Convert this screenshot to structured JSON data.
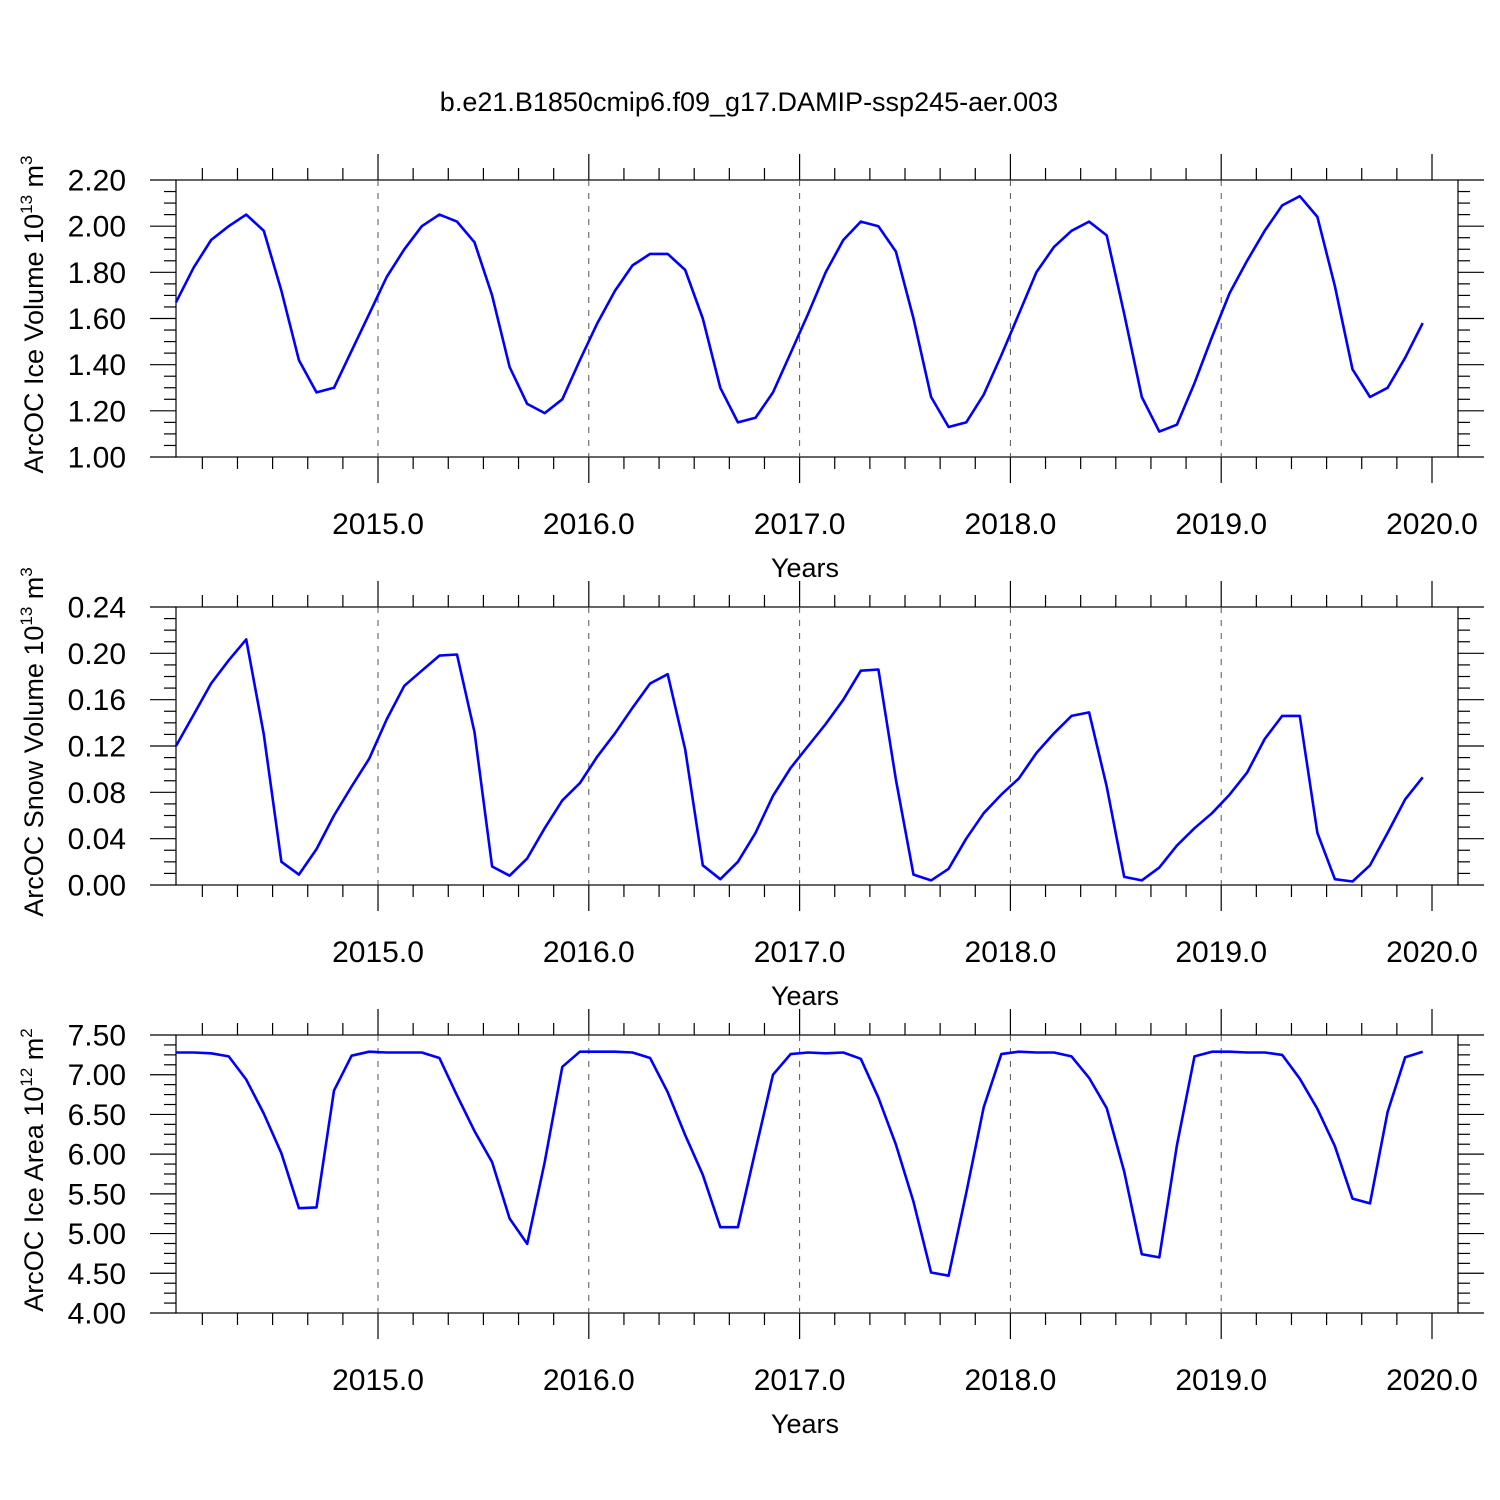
{
  "figure": {
    "title": "b.e21.B1850cmip6.f09_g17.DAMIP-ssp245-aer.003"
  },
  "chart_data": [
    {
      "type": "line",
      "title": "b.e21.B1850cmip6.f09_g17.DAMIP-ssp245-aer.003",
      "xlabel": "Years",
      "ylabel": "ArcOC Ice Volume 10^13 m^3",
      "ylabel_main": "ArcOC Ice Volume 10",
      "ylabel_exp": "13",
      "ylabel_unit": " m",
      "ylabel_unit_exp": "3",
      "xlim": [
        2014.0417,
        2020.0
      ],
      "ylim": [
        1.0,
        2.2
      ],
      "x_ticks": [
        "2015.0",
        "2016.0",
        "2017.0",
        "2018.0",
        "2019.0",
        "2020.0"
      ],
      "y_ticks": [
        "1.00",
        "1.20",
        "1.40",
        "1.60",
        "1.80",
        "2.00",
        "2.20"
      ],
      "grid": "vertical dashed at major x ticks",
      "color": "#0000ff",
      "x_start": 2014.0417,
      "x_step": 0.0833,
      "series": [
        {
          "values": [
            1.67,
            1.82,
            1.94,
            2.0,
            2.05,
            1.98,
            1.72,
            1.42,
            1.28,
            1.3,
            1.46,
            1.62,
            1.78,
            1.9,
            2.0,
            2.05,
            2.02,
            1.93,
            1.7,
            1.39,
            1.23,
            1.19,
            1.25,
            1.42,
            1.58,
            1.72,
            1.83,
            1.88,
            1.88,
            1.81,
            1.6,
            1.3,
            1.15,
            1.17,
            1.28,
            1.45,
            1.62,
            1.8,
            1.94,
            2.02,
            2.0,
            1.89,
            1.6,
            1.26,
            1.13,
            1.15,
            1.27,
            1.44,
            1.62,
            1.8,
            1.91,
            1.98,
            2.02,
            1.96,
            1.62,
            1.26,
            1.11,
            1.14,
            1.32,
            1.52,
            1.71,
            1.85,
            1.98,
            2.09,
            2.13,
            2.04,
            1.74,
            1.38,
            1.26,
            1.3,
            1.43,
            1.58
          ]
        }
      ]
    },
    {
      "type": "line",
      "xlabel": "Years",
      "ylabel": "ArcOC Snow Volume 10^13 m^3",
      "ylabel_main": "ArcOC Snow Volume 10",
      "ylabel_exp": "13",
      "ylabel_unit": " m",
      "ylabel_unit_exp": "3",
      "xlim": [
        2014.0417,
        2020.0
      ],
      "ylim": [
        0.0,
        0.24
      ],
      "x_ticks": [
        "2015.0",
        "2016.0",
        "2017.0",
        "2018.0",
        "2019.0",
        "2020.0"
      ],
      "y_ticks": [
        "0.00",
        "0.04",
        "0.08",
        "0.12",
        "0.16",
        "0.20",
        "0.24"
      ],
      "grid": "vertical dashed at major x ticks",
      "color": "#0000ff",
      "x_start": 2014.0417,
      "x_step": 0.0833,
      "series": [
        {
          "values": [
            0.12,
            0.147,
            0.174,
            0.194,
            0.212,
            0.13,
            0.02,
            0.009,
            0.031,
            0.06,
            0.085,
            0.109,
            0.143,
            0.172,
            0.185,
            0.198,
            0.199,
            0.132,
            0.016,
            0.008,
            0.023,
            0.049,
            0.073,
            0.088,
            0.111,
            0.131,
            0.153,
            0.174,
            0.182,
            0.117,
            0.017,
            0.005,
            0.02,
            0.045,
            0.077,
            0.101,
            0.12,
            0.139,
            0.16,
            0.185,
            0.186,
            0.091,
            0.009,
            0.004,
            0.014,
            0.04,
            0.062,
            0.078,
            0.092,
            0.114,
            0.131,
            0.146,
            0.149,
            0.085,
            0.007,
            0.004,
            0.015,
            0.034,
            0.049,
            0.062,
            0.078,
            0.097,
            0.126,
            0.146,
            0.146,
            0.045,
            0.005,
            0.003,
            0.017,
            0.045,
            0.074,
            0.093
          ]
        }
      ]
    },
    {
      "type": "line",
      "xlabel": "Years",
      "ylabel": "ArcOC Ice Area 10^12 m^2",
      "ylabel_main": "ArcOC Ice Area 10",
      "ylabel_exp": "12",
      "ylabel_unit": " m",
      "ylabel_unit_exp": "2",
      "xlim": [
        2014.0417,
        2020.0
      ],
      "ylim": [
        4.0,
        7.5
      ],
      "x_ticks": [
        "2015.0",
        "2016.0",
        "2017.0",
        "2018.0",
        "2019.0",
        "2020.0"
      ],
      "y_ticks": [
        "4.00",
        "4.50",
        "5.00",
        "5.50",
        "6.00",
        "6.50",
        "7.00",
        "7.50"
      ],
      "grid": "vertical dashed at major x ticks",
      "color": "#0000ff",
      "x_start": 2014.0417,
      "x_step": 0.0833,
      "series": [
        {
          "values": [
            7.28,
            7.28,
            7.27,
            7.23,
            6.94,
            6.51,
            6.01,
            5.32,
            5.33,
            6.8,
            7.24,
            7.29,
            7.28,
            7.28,
            7.28,
            7.21,
            6.74,
            6.29,
            5.9,
            5.19,
            4.87,
            5.9,
            7.1,
            7.29,
            7.29,
            7.29,
            7.28,
            7.21,
            6.78,
            6.24,
            5.74,
            5.08,
            5.08,
            6.05,
            7.0,
            7.26,
            7.28,
            7.27,
            7.28,
            7.2,
            6.71,
            6.12,
            5.4,
            4.51,
            4.47,
            5.51,
            6.59,
            7.26,
            7.29,
            7.28,
            7.28,
            7.23,
            6.96,
            6.58,
            5.78,
            4.74,
            4.7,
            6.11,
            7.23,
            7.29,
            7.29,
            7.28,
            7.28,
            7.25,
            6.95,
            6.57,
            6.1,
            5.44,
            5.38,
            6.53,
            7.22,
            7.29
          ]
        }
      ]
    }
  ]
}
